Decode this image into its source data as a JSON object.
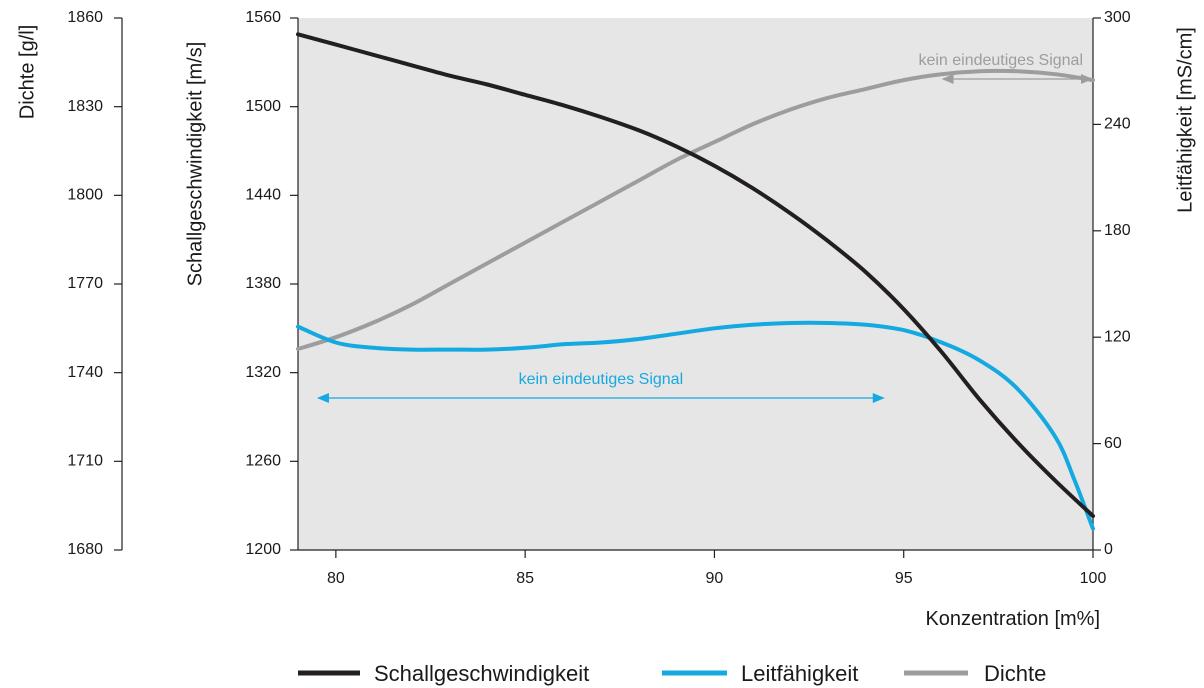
{
  "chart_data": {
    "type": "line",
    "x": {
      "label": "Konzentration [m%]",
      "range": [
        79,
        100
      ],
      "ticks": [
        80,
        85,
        90,
        95,
        100
      ]
    },
    "axes": {
      "dichte": {
        "label": "Dichte [g/l]",
        "range": [
          1680,
          1860
        ],
        "ticks": [
          1680,
          1710,
          1740,
          1770,
          1800,
          1830,
          1860
        ]
      },
      "schall": {
        "label": "Schallgeschwindigkeit [m/s]",
        "range": [
          1200,
          1560
        ],
        "ticks": [
          1200,
          1260,
          1320,
          1380,
          1440,
          1500,
          1560
        ]
      },
      "leit": {
        "label": "Leitfähigkeit [mS/cm]",
        "range": [
          0,
          300
        ],
        "ticks": [
          0,
          60,
          120,
          180,
          240,
          300
        ]
      }
    },
    "series": [
      {
        "name": "Schallgeschwindigkeit",
        "axis": "schall",
        "color": "#231f20",
        "points": [
          [
            79,
            1549
          ],
          [
            80,
            1542
          ],
          [
            81,
            1535
          ],
          [
            82,
            1528
          ],
          [
            83,
            1521
          ],
          [
            84,
            1515
          ],
          [
            85,
            1508
          ],
          [
            86,
            1501
          ],
          [
            87,
            1493
          ],
          [
            88,
            1484
          ],
          [
            89,
            1473
          ],
          [
            90,
            1460
          ],
          [
            91,
            1445
          ],
          [
            92,
            1428
          ],
          [
            93,
            1409
          ],
          [
            94,
            1388
          ],
          [
            95,
            1363
          ],
          [
            96,
            1334
          ],
          [
            97,
            1302
          ],
          [
            98,
            1273
          ],
          [
            99,
            1247
          ],
          [
            100,
            1223
          ]
        ]
      },
      {
        "name": "Leitfähigkeit",
        "axis": "leit",
        "color": "#15a9e1",
        "points": [
          [
            79,
            126
          ],
          [
            80,
            117
          ],
          [
            81,
            114
          ],
          [
            82,
            113
          ],
          [
            83,
            113
          ],
          [
            84,
            113
          ],
          [
            85,
            114
          ],
          [
            86,
            116
          ],
          [
            87,
            117
          ],
          [
            88,
            119
          ],
          [
            89,
            122
          ],
          [
            90,
            125
          ],
          [
            91,
            127
          ],
          [
            92,
            128
          ],
          [
            93,
            128
          ],
          [
            94,
            127
          ],
          [
            95,
            124
          ],
          [
            96,
            117
          ],
          [
            97,
            107
          ],
          [
            98,
            91
          ],
          [
            99,
            64
          ],
          [
            99.5,
            40
          ],
          [
            100,
            12
          ]
        ]
      },
      {
        "name": "Dichte",
        "axis": "dichte",
        "color": "#9d9d9d",
        "points": [
          [
            79,
            1748
          ],
          [
            80,
            1752
          ],
          [
            81,
            1757
          ],
          [
            82,
            1763
          ],
          [
            83,
            1770
          ],
          [
            84,
            1777
          ],
          [
            85,
            1784
          ],
          [
            86,
            1791
          ],
          [
            87,
            1798
          ],
          [
            88,
            1805
          ],
          [
            89,
            1812
          ],
          [
            90,
            1818
          ],
          [
            91,
            1824
          ],
          [
            92,
            1829
          ],
          [
            93,
            1833
          ],
          [
            94,
            1836
          ],
          [
            95,
            1839
          ],
          [
            96,
            1841
          ],
          [
            97,
            1842
          ],
          [
            98,
            1842
          ],
          [
            99,
            1841
          ],
          [
            100,
            1839
          ]
        ]
      }
    ],
    "annotations": [
      {
        "text": "kein eindeutiges Signal",
        "color": "#9d9d9d",
        "x_range": [
          96,
          100
        ]
      },
      {
        "text": "kein eindeutiges Signal",
        "color": "#15a9e1",
        "x_range": [
          79.5,
          94.5
        ]
      }
    ],
    "grid": false,
    "plot_background": "#e6e6e6",
    "legend_position": "bottom",
    "legend": [
      "Schallgeschwindigkeit",
      "Leitfähigkeit",
      "Dichte"
    ]
  }
}
